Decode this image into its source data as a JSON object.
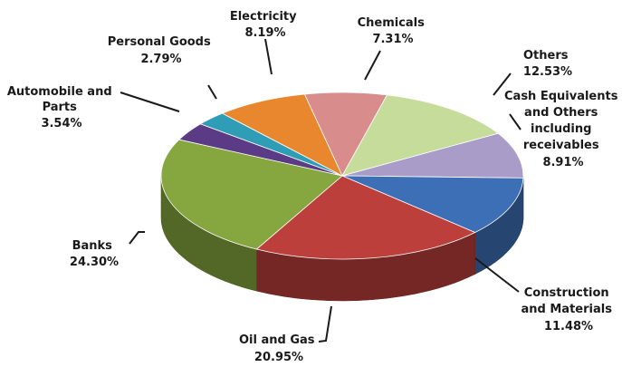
{
  "chart_data": {
    "type": "pie",
    "title": "",
    "slices": [
      {
        "label": "Chemicals",
        "value_text": "7.31%",
        "value": 7.31,
        "color": "#d98c8c"
      },
      {
        "label": "Others",
        "value_text": "12.53%",
        "value": 12.53,
        "color": "#c5dc9a"
      },
      {
        "label": "Cash Equivalents and Others including receivables",
        "value_text": "8.91%",
        "value": 8.91,
        "color": "#a99cc9"
      },
      {
        "label": "Construction and Materials",
        "value_text": "11.48%",
        "value": 11.48,
        "color": "#3d6fb6"
      },
      {
        "label": "Oil and Gas",
        "value_text": "20.95%",
        "value": 20.95,
        "color": "#bc3f3b"
      },
      {
        "label": "Banks",
        "value_text": "24.30%",
        "value": 24.3,
        "color": "#86a63f"
      },
      {
        "label": "Automobile and Parts",
        "value_text": "3.54%",
        "value": 3.54,
        "color": "#5b3b86"
      },
      {
        "label": "Personal Goods",
        "value_text": "2.79%",
        "value": 2.79,
        "color": "#2e9db5"
      },
      {
        "label": "Electricity",
        "value_text": "8.19%",
        "value": 8.19,
        "color": "#e8872e"
      }
    ],
    "labels": {
      "chemicals": {
        "name": "Chemicals",
        "value": "7.31%"
      },
      "others": {
        "name": "Others",
        "value": "12.53%"
      },
      "cash_line1": "Cash Equivalents",
      "cash_line2": "and Others",
      "cash_line3": "including",
      "cash_line4": "receivables",
      "cash_value": "8.91%",
      "construction_line1": "Construction",
      "construction_line2": "and Materials",
      "construction_value": "11.48%",
      "oil": {
        "name": "Oil and Gas",
        "value": "20.95%"
      },
      "banks": {
        "name": "Banks",
        "value": "24.30%"
      },
      "auto_line1": "Automobile and",
      "auto_line2": "Parts",
      "auto_value": "3.54%",
      "personal": {
        "name": "Personal Goods",
        "value": "2.79%"
      },
      "electricity": {
        "name": "Electricity",
        "value": "8.19%"
      }
    }
  }
}
